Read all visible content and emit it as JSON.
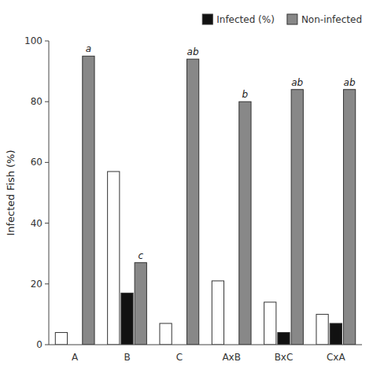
{
  "chart_data": {
    "type": "bar",
    "y_label": "Infected Fish (%)",
    "categories": [
      "A",
      "B",
      "C",
      "AxB",
      "BxC",
      "CxA"
    ],
    "series": [
      {
        "color": "#ffffff",
        "values": [
          4,
          57,
          7,
          21,
          14,
          10
        ]
      },
      {
        "name": "Infected (%)",
        "color": "#111111",
        "values": [
          0,
          17,
          0,
          0,
          4,
          7
        ]
      },
      {
        "name": "Non-infected",
        "color": "#888888",
        "values": [
          95,
          27,
          94,
          80,
          84,
          84
        ]
      }
    ],
    "annotations": [
      {
        "text": "a",
        "x": "A",
        "y": 95,
        "series": "Non-infected"
      },
      {
        "text": "c",
        "x": "B",
        "y": 27,
        "series": "Non-infected"
      },
      {
        "text": "ab",
        "x": "C",
        "y": 94,
        "series": "Non-infected"
      },
      {
        "text": "b",
        "x": "AxB",
        "y": 80,
        "series": "Non-infected"
      },
      {
        "text": "ab",
        "x": "BxC",
        "y": 84,
        "series": "Non-infected"
      },
      {
        "text": "ab",
        "x": "CxA",
        "y": 84,
        "series": "Non-infected"
      }
    ],
    "ylim": [
      0,
      100
    ],
    "yticks": [
      0,
      20,
      40,
      60,
      80,
      100
    ],
    "grid": false,
    "legend": "upper right"
  }
}
